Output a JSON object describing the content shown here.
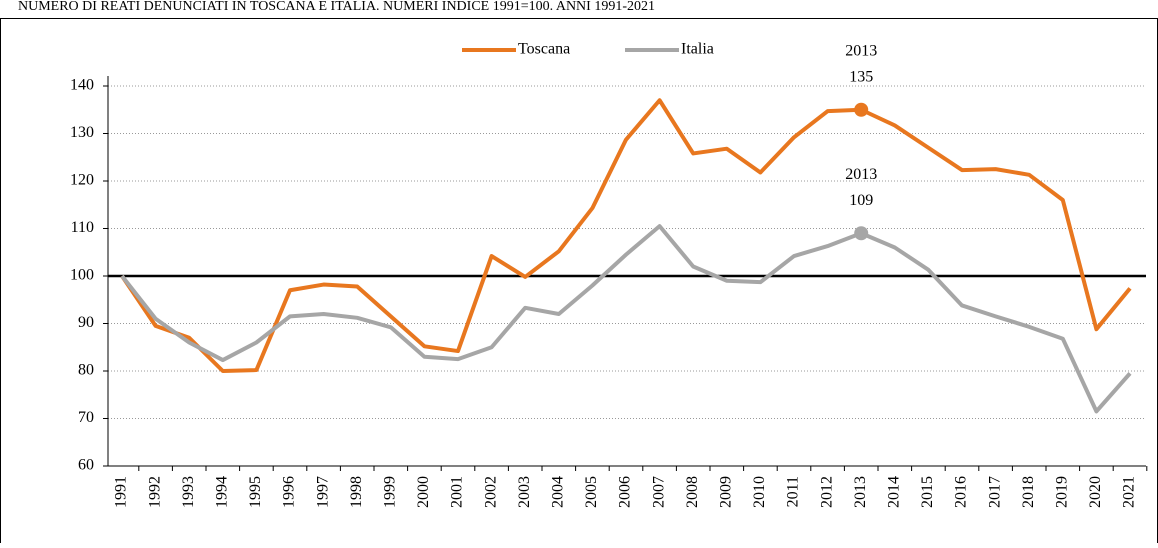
{
  "chart_data": {
    "type": "line",
    "title": "NUMERO DI REATI DENUNCIATI IN TOSCANA E ITALIA. NUMERI INDICE 1991=100.  ANNI 1991-2021",
    "categories": [
      "1991",
      "1992",
      "1993",
      "1994",
      "1995",
      "1996",
      "1997",
      "1998",
      "1999",
      "2000",
      "2001",
      "2002",
      "2003",
      "2004",
      "2005",
      "2006",
      "2007",
      "2008",
      "2009",
      "2010",
      "2011",
      "2012",
      "2013",
      "2014",
      "2015",
      "2016",
      "2017",
      "2018",
      "2019",
      "2020",
      "2021"
    ],
    "series": [
      {
        "name": "Toscana",
        "color": "#e8771f",
        "values": [
          100,
          89.5,
          87,
          80,
          80.2,
          97,
          98.2,
          97.8,
          91.5,
          85.2,
          84.2,
          104.2,
          99.8,
          105.2,
          114.3,
          128.7,
          137,
          125.8,
          126.8,
          121.8,
          129.2,
          134.7,
          135,
          131.7,
          127,
          122.3,
          122.5,
          121.3,
          116,
          88.8,
          97.4
        ]
      },
      {
        "name": "Italia",
        "color": "#a6a6a6",
        "values": [
          100,
          91,
          86,
          82.3,
          86,
          91.5,
          92,
          91.2,
          89.2,
          83,
          82.5,
          85,
          93.3,
          92,
          98,
          104.5,
          110.5,
          102,
          99,
          98.7,
          104.2,
          106.3,
          109,
          106,
          101.3,
          93.8,
          91.5,
          89.3,
          86.8,
          71.5,
          79.5
        ]
      }
    ],
    "highlight": "2013",
    "reference_line": 100,
    "ylim": [
      60,
      140
    ],
    "yticks": [
      60,
      70,
      80,
      90,
      100,
      110,
      120,
      130,
      140
    ],
    "grid": true,
    "legend": "top"
  }
}
